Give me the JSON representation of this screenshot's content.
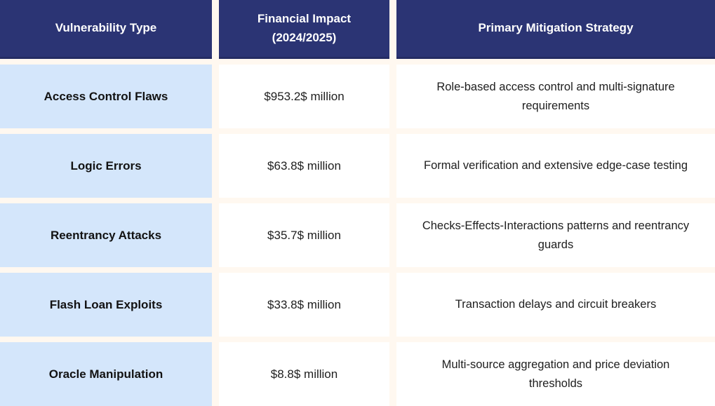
{
  "chart_data": {
    "type": "table",
    "columns": [
      "Vulnerability Type",
      "Financial Impact (2024/2025)",
      "Primary Mitigation Strategy"
    ],
    "rows": [
      [
        "Access Control Flaws",
        "$953.2$ million",
        "Role-based access control and multi-signature requirements"
      ],
      [
        "Logic Errors",
        "$63.8$ million",
        "Formal verification and extensive edge-case testing"
      ],
      [
        "Reentrancy Attacks",
        "$35.7$ million",
        "Checks-Effects-Interactions patterns and reentrancy guards"
      ],
      [
        "Flash Loan Exploits",
        "$33.8$ million",
        "Transaction delays and circuit breakers"
      ],
      [
        "Oracle Manipulation",
        "$8.8$ million",
        "Multi-source aggregation and price deviation thresholds"
      ]
    ],
    "financial_impact_million_usd": {
      "Access Control Flaws": 953.2,
      "Logic Errors": 63.8,
      "Reentrancy Attacks": 35.7,
      "Flash Loan Exploits": 33.8,
      "Oracle Manipulation": 8.8
    }
  },
  "colors": {
    "page_bg": "#FFF8F0",
    "header_bg": "#2B3474",
    "header_border": "#242C63",
    "header_text": "#FFFFFF",
    "label_bg": "#D4E6FB",
    "cell_bg": "#FFFFFF",
    "label_text": "#121212",
    "body_text": "#202020"
  }
}
